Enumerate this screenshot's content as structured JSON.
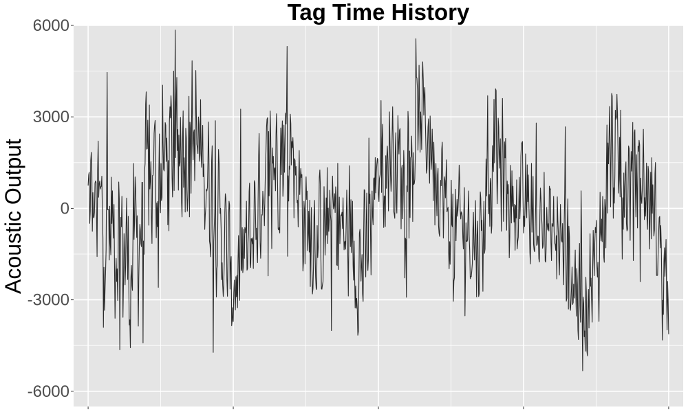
{
  "chart_data": {
    "type": "line",
    "title": "Tag Time History",
    "xlabel": "",
    "ylabel": "Acoustic Output",
    "ylim": [
      -6500,
      6000
    ],
    "xlim": [
      -0.5,
      20.5
    ],
    "yticks": [
      6000,
      3000,
      0,
      -3000,
      -6000
    ],
    "yticklabels": [
      "6000",
      "3000",
      "0",
      "-3000",
      "-6000"
    ],
    "xticks_present": [
      0,
      5,
      10,
      15,
      20
    ],
    "grid": true,
    "legend": "none",
    "colors": {
      "panel": "#e5e5e5",
      "grid": "#ffffff",
      "line": "#2b2b2b"
    },
    "series": [
      {
        "description_of_shape": "dense noisy acoustic trace of ~1000 samples spanning x 0..20; local envelope mean values listed in 'envelope' at x = 0,0.5,...,20",
        "envelope_x": [
          0,
          0.5,
          1,
          1.5,
          2,
          2.5,
          3,
          3.5,
          4,
          4.5,
          5,
          5.5,
          6,
          6.5,
          7,
          7.5,
          8,
          8.5,
          9,
          9.5,
          10,
          10.5,
          11,
          11.5,
          12,
          12.5,
          13,
          13.5,
          14,
          14.5,
          15,
          15.5,
          16,
          16.5,
          17,
          17.5,
          18,
          18.5,
          19,
          19.5,
          20
        ],
        "envelope_mean": [
          200,
          -300,
          -800,
          -2000,
          500,
          1200,
          2000,
          2500,
          1500,
          -500,
          -2500,
          -1500,
          800,
          1800,
          2200,
          -500,
          -1000,
          -300,
          -1200,
          -2000,
          1500,
          1800,
          800,
          3200,
          1500,
          -800,
          -500,
          -1200,
          2000,
          500,
          0,
          -500,
          -800,
          -1500,
          -3000,
          -2000,
          1800,
          500,
          1200,
          -300,
          -2500
        ],
        "envelope_amplitude": [
          3200,
          3400,
          3500,
          3600,
          3500,
          3200,
          3000,
          3300,
          3200,
          2800,
          2800,
          3000,
          2800,
          2900,
          2800,
          2700,
          2600,
          2600,
          2700,
          2800,
          2600,
          2600,
          2400,
          2400,
          2600,
          2500,
          2400,
          2500,
          2800,
          2500,
          2300,
          2400,
          2400,
          2600,
          2700,
          2800,
          3000,
          2800,
          2700,
          2400,
          2000
        ],
        "extrema": [
          5950,
          -6000
        ]
      }
    ]
  }
}
